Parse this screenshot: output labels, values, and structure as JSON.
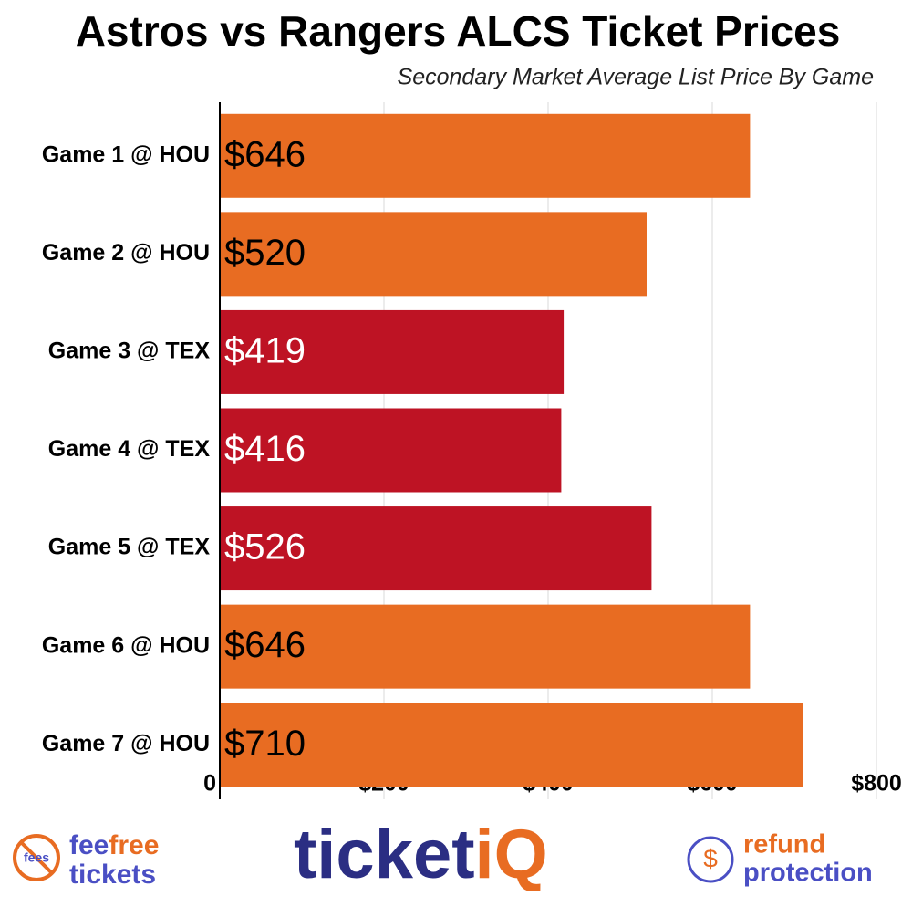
{
  "chart_data": {
    "type": "bar",
    "orientation": "horizontal",
    "title": "Astros vs Rangers ALCS Ticket Prices",
    "subtitle": "Secondary Market Average List Price By Game",
    "categories": [
      "Game 1 @ HOU",
      "Game 2 @ HOU",
      "Game 3 @ TEX",
      "Game 4 @ TEX",
      "Game 5 @ TEX",
      "Game 6 @ HOU",
      "Game 7 @ HOU"
    ],
    "values": [
      646,
      520,
      419,
      416,
      526,
      646,
      710
    ],
    "value_labels": [
      "$646",
      "$520",
      "$419",
      "$416",
      "$526",
      "$646",
      "$710"
    ],
    "colors": [
      "#e86c22",
      "#e86c22",
      "#be1324",
      "#be1324",
      "#be1324",
      "#e86c22",
      "#e86c22"
    ],
    "xlim": [
      0,
      800
    ],
    "xticks": [
      0,
      {
        "value": 200,
        "label": "$200"
      },
      {
        "value": 400,
        "label": "$400"
      },
      {
        "value": 600,
        "label": "$600"
      },
      {
        "value": 800,
        "label": "$800"
      }
    ],
    "grid": true
  },
  "footer": {
    "feefree": {
      "badge": "fees",
      "fee": "fee",
      "free": "free",
      "tickets": "tickets"
    },
    "ticketiq": {
      "ticket": "ticket",
      "iq": "iQ"
    },
    "refund": {
      "icon": "$",
      "refund": "refund",
      "protection": "protection"
    }
  }
}
